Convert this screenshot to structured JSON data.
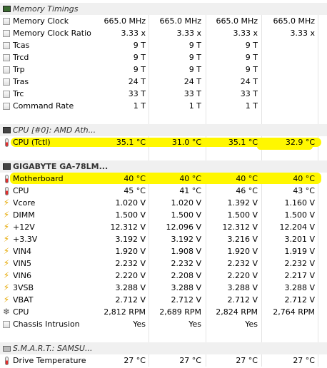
{
  "sections": {
    "memory": {
      "title": "Memory Timings",
      "rows": [
        {
          "label": "Memory Clock",
          "v": [
            "665.0 MHz",
            "665.0 MHz",
            "665.0 MHz",
            "665.0 MHz"
          ]
        },
        {
          "label": "Memory Clock Ratio",
          "v": [
            "3.33 x",
            "3.33 x",
            "3.33 x",
            "3.33 x"
          ]
        },
        {
          "label": "Tcas",
          "v": [
            "9 T",
            "9 T",
            "9 T",
            ""
          ]
        },
        {
          "label": "Trcd",
          "v": [
            "9 T",
            "9 T",
            "9 T",
            ""
          ]
        },
        {
          "label": "Trp",
          "v": [
            "9 T",
            "9 T",
            "9 T",
            ""
          ]
        },
        {
          "label": "Tras",
          "v": [
            "24 T",
            "24 T",
            "24 T",
            ""
          ]
        },
        {
          "label": "Trc",
          "v": [
            "33 T",
            "33 T",
            "33 T",
            ""
          ]
        },
        {
          "label": "Command Rate",
          "v": [
            "1 T",
            "1 T",
            "1 T",
            ""
          ]
        }
      ]
    },
    "cpu": {
      "title": "CPU [#0]: AMD Ath...",
      "rows": [
        {
          "label": "CPU (Tctl)",
          "v": [
            "35.1 °C",
            "31.0 °C",
            "35.1 °C",
            "32.9 °C"
          ]
        }
      ]
    },
    "mobo": {
      "title": "GIGABYTE GA-78LM...",
      "rows": [
        {
          "label": "Motherboard",
          "v": [
            "40 °C",
            "40 °C",
            "40 °C",
            "40 °C"
          ]
        },
        {
          "label": "CPU",
          "v": [
            "45 °C",
            "41 °C",
            "46 °C",
            "43 °C"
          ]
        },
        {
          "label": "Vcore",
          "v": [
            "1.020 V",
            "1.020 V",
            "1.392 V",
            "1.160 V"
          ]
        },
        {
          "label": "DIMM",
          "v": [
            "1.500 V",
            "1.500 V",
            "1.500 V",
            "1.500 V"
          ]
        },
        {
          "label": "+12V",
          "v": [
            "12.312 V",
            "12.096 V",
            "12.312 V",
            "12.204 V"
          ]
        },
        {
          "label": "+3.3V",
          "v": [
            "3.192 V",
            "3.192 V",
            "3.216 V",
            "3.201 V"
          ]
        },
        {
          "label": "VIN4",
          "v": [
            "1.920 V",
            "1.908 V",
            "1.920 V",
            "1.919 V"
          ]
        },
        {
          "label": "VIN5",
          "v": [
            "2.232 V",
            "2.232 V",
            "2.232 V",
            "2.232 V"
          ]
        },
        {
          "label": "VIN6",
          "v": [
            "2.220 V",
            "2.208 V",
            "2.220 V",
            "2.217 V"
          ]
        },
        {
          "label": "3VSB",
          "v": [
            "3.288 V",
            "3.288 V",
            "3.288 V",
            "3.288 V"
          ]
        },
        {
          "label": "VBAT",
          "v": [
            "2.712 V",
            "2.712 V",
            "2.712 V",
            "2.712 V"
          ]
        },
        {
          "label": "CPU",
          "v": [
            "2,812 RPM",
            "2,689 RPM",
            "2,824 RPM",
            "2,764 RPM"
          ]
        },
        {
          "label": "Chassis Intrusion",
          "v": [
            "Yes",
            "Yes",
            "Yes",
            ""
          ]
        }
      ]
    },
    "smart": {
      "title": "S.M.A.R.T.: SAMSU...",
      "rows": [
        {
          "label": "Drive Temperature",
          "v": [
            "27 °C",
            "27 °C",
            "27 °C",
            "27 °C"
          ]
        }
      ]
    }
  },
  "icons": {
    "memory": [
      "square-icon",
      "square-icon",
      "square-icon",
      "square-icon",
      "square-icon",
      "square-icon",
      "square-icon",
      "square-icon"
    ],
    "mobo": [
      "thermometer-icon",
      "thermometer-icon",
      "voltage-icon",
      "voltage-icon",
      "voltage-icon",
      "voltage-icon",
      "voltage-icon",
      "voltage-icon",
      "voltage-icon",
      "voltage-icon",
      "voltage-icon",
      "fan-icon",
      "square-icon"
    ]
  },
  "colors": {
    "highlight": "#fff700",
    "group_bg": "#f0f0f0",
    "grid": "#e4e4e4"
  }
}
